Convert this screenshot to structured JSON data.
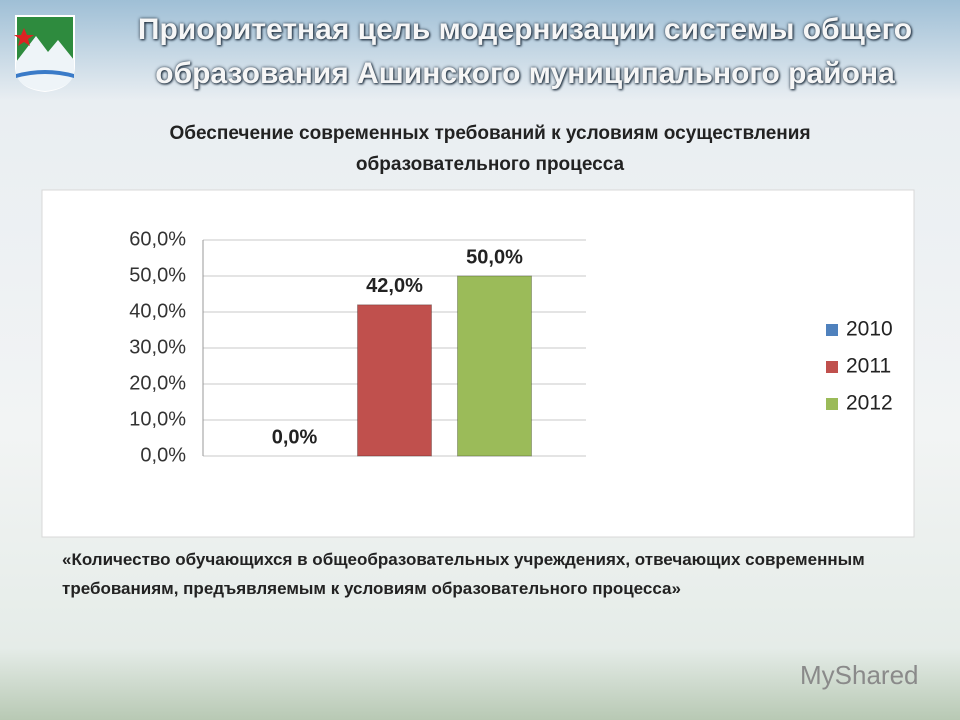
{
  "header": {
    "title": "Приоритетная цель модернизации системы общего образования Ашинского муниципального района"
  },
  "chart_data": {
    "type": "bar",
    "title": "Обеспечение современных требований к условиям осуществления образовательного процесса",
    "categories": [
      null
    ],
    "series": [
      {
        "name": "2010",
        "color": "#4f81bd",
        "values": [
          0
        ],
        "value_labels": [
          "0,0%"
        ]
      },
      {
        "name": "2011",
        "color": "#c0504d",
        "values": [
          42
        ],
        "value_labels": [
          "42,0%"
        ]
      },
      {
        "name": "2012",
        "color": "#9bbb59",
        "values": [
          50
        ],
        "value_labels": [
          "50,0%"
        ]
      }
    ],
    "ylim": [
      0,
      60
    ],
    "yticks": [
      {
        "value": 0,
        "label": "0,0%"
      },
      {
        "value": 10,
        "label": "10,0%"
      },
      {
        "value": 20,
        "label": "20,0%"
      },
      {
        "value": 30,
        "label": "30,0%"
      },
      {
        "value": 40,
        "label": "40,0%"
      },
      {
        "value": 50,
        "label": "50,0%"
      },
      {
        "value": 60,
        "label": "60,0%"
      }
    ],
    "grid": true,
    "legend": "right"
  },
  "footnote": "«Количество обучающихся в общеобразовательных учреждениях, отвечающих современным требованиям, предъявляемым к условиям образовательного процесса»",
  "watermark": "MyShared"
}
